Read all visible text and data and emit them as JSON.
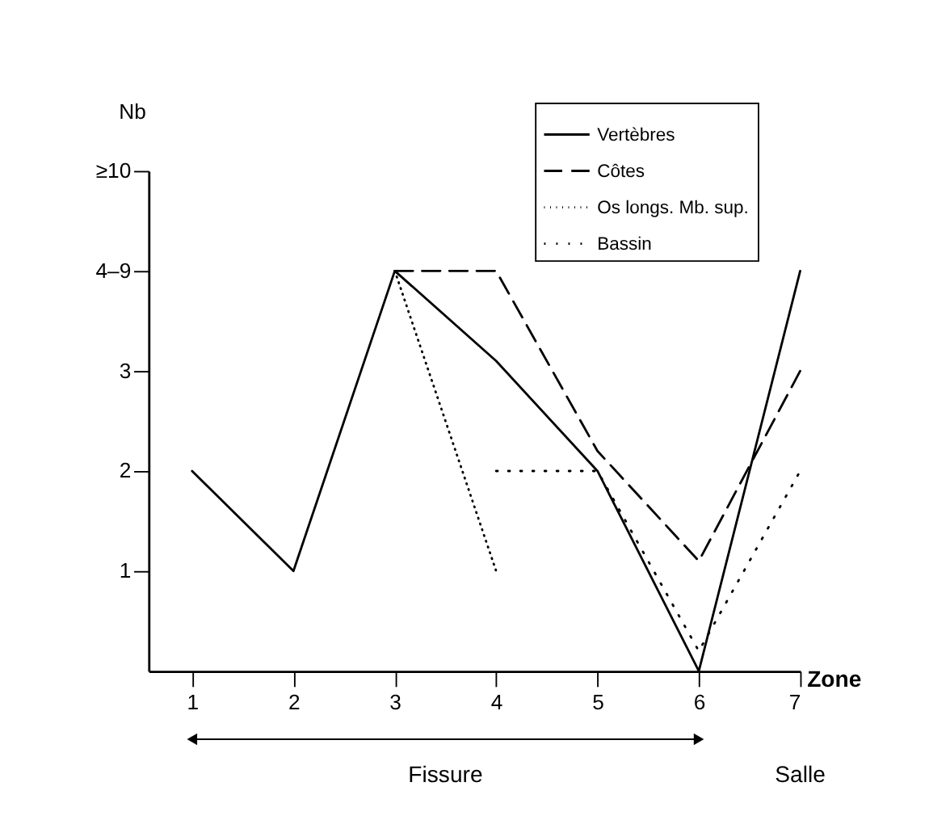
{
  "chart_data": {
    "type": "line",
    "xlabel": "Zone",
    "ylabel": "Nb",
    "xlim": [
      0.57,
      7.0
    ],
    "xticks": [
      1,
      2,
      3,
      4,
      5,
      6,
      7
    ],
    "ylim": [
      0,
      5
    ],
    "yticks": [
      1,
      2,
      3,
      {
        "value": 4,
        "label": "4–9"
      },
      {
        "value": 5,
        "label": "≥10"
      }
    ],
    "grid": false,
    "legend": "top right",
    "marker": "none",
    "series": [
      {
        "name": "Vertèbres",
        "color": "#000000",
        "line_style": "solid",
        "x": [
          1,
          2,
          3,
          4,
          5,
          6,
          7
        ],
        "values": [
          2,
          1,
          4,
          3.1,
          2,
          0,
          4
        ]
      },
      {
        "name": "Côtes",
        "color": "#000000",
        "line_style": "dashed",
        "x": [
          3,
          4,
          5,
          6,
          7
        ],
        "values": [
          4,
          4,
          2.2,
          1.1,
          3
        ]
      },
      {
        "name": "Os longs. Mb. sup.",
        "color": "#000000",
        "line_style": "dotted",
        "x": [
          3,
          4
        ],
        "values": [
          4,
          1
        ]
      },
      {
        "name": "Bassin",
        "color": "#000000",
        "line_style": "dotted",
        "x": [
          4,
          5,
          6,
          7
        ],
        "values": [
          2,
          2,
          0.2,
          2
        ]
      }
    ],
    "annotations": [
      "Fissure",
      "Salle"
    ]
  }
}
